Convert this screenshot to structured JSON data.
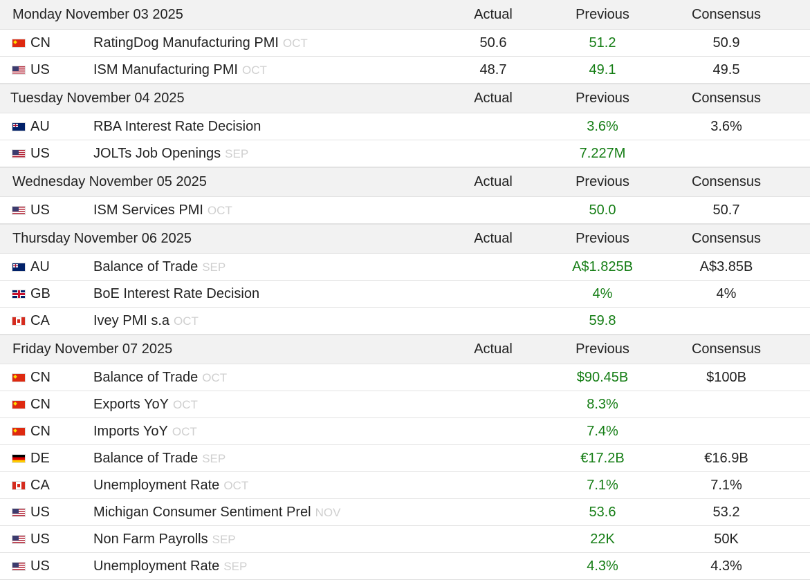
{
  "columns": {
    "actual": "Actual",
    "previous": "Previous",
    "consensus": "Consensus"
  },
  "colors": {
    "previous_value": "#147d14",
    "period": "#cfcfcf",
    "header_bg": "#f2f2f2"
  },
  "days": [
    {
      "date": "Monday November 03 2025",
      "events": [
        {
          "country": "CN",
          "flag": "cn-flag-icon",
          "event": "RatingDog Manufacturing PMI",
          "period": "OCT",
          "actual": "50.6",
          "previous": "51.2",
          "consensus": "50.9"
        },
        {
          "country": "US",
          "flag": "us-flag-icon",
          "event": "ISM Manufacturing PMI",
          "period": "OCT",
          "actual": "48.7",
          "previous": "49.1",
          "consensus": "49.5"
        }
      ]
    },
    {
      "date": "Tuesday November 04 2025",
      "events": [
        {
          "country": "AU",
          "flag": "au-flag-icon",
          "event": "RBA Interest Rate Decision",
          "period": "",
          "actual": "",
          "previous": "3.6%",
          "consensus": "3.6%"
        },
        {
          "country": "US",
          "flag": "us-flag-icon",
          "event": "JOLTs Job Openings",
          "period": "SEP",
          "actual": "",
          "previous": "7.227M",
          "consensus": ""
        }
      ]
    },
    {
      "date": "Wednesday November 05 2025",
      "events": [
        {
          "country": "US",
          "flag": "us-flag-icon",
          "event": "ISM Services PMI",
          "period": "OCT",
          "actual": "",
          "previous": "50.0",
          "consensus": "50.7"
        }
      ]
    },
    {
      "date": "Thursday November 06 2025",
      "events": [
        {
          "country": "AU",
          "flag": "au-flag-icon",
          "event": "Balance of Trade",
          "period": "SEP",
          "actual": "",
          "previous": "A$1.825B",
          "consensus": "A$3.85B"
        },
        {
          "country": "GB",
          "flag": "gb-flag-icon",
          "event": "BoE Interest Rate Decision",
          "period": "",
          "actual": "",
          "previous": "4%",
          "consensus": "4%"
        },
        {
          "country": "CA",
          "flag": "ca-flag-icon",
          "event": "Ivey PMI s.a",
          "period": "OCT",
          "actual": "",
          "previous": "59.8",
          "consensus": ""
        }
      ]
    },
    {
      "date": "Friday November 07 2025",
      "events": [
        {
          "country": "CN",
          "flag": "cn-flag-icon",
          "event": "Balance of Trade",
          "period": "OCT",
          "actual": "",
          "previous": "$90.45B",
          "consensus": "$100B"
        },
        {
          "country": "CN",
          "flag": "cn-flag-icon",
          "event": "Exports YoY",
          "period": "OCT",
          "actual": "",
          "previous": "8.3%",
          "consensus": ""
        },
        {
          "country": "CN",
          "flag": "cn-flag-icon",
          "event": "Imports YoY",
          "period": "OCT",
          "actual": "",
          "previous": "7.4%",
          "consensus": ""
        },
        {
          "country": "DE",
          "flag": "de-flag-icon",
          "event": "Balance of Trade",
          "period": "SEP",
          "actual": "",
          "previous": "€17.2B",
          "consensus": "€16.9B"
        },
        {
          "country": "CA",
          "flag": "ca-flag-icon",
          "event": "Unemployment Rate",
          "period": "OCT",
          "actual": "",
          "previous": "7.1%",
          "consensus": "7.1%"
        },
        {
          "country": "US",
          "flag": "us-flag-icon",
          "event": "Michigan Consumer Sentiment Prel",
          "period": "NOV",
          "actual": "",
          "previous": "53.6",
          "consensus": "53.2"
        },
        {
          "country": "US",
          "flag": "us-flag-icon",
          "event": "Non Farm Payrolls",
          "period": "SEP",
          "actual": "",
          "previous": "22K",
          "consensus": "50K"
        },
        {
          "country": "US",
          "flag": "us-flag-icon",
          "event": "Unemployment Rate",
          "period": "SEP",
          "actual": "",
          "previous": "4.3%",
          "consensus": "4.3%"
        }
      ]
    }
  ]
}
